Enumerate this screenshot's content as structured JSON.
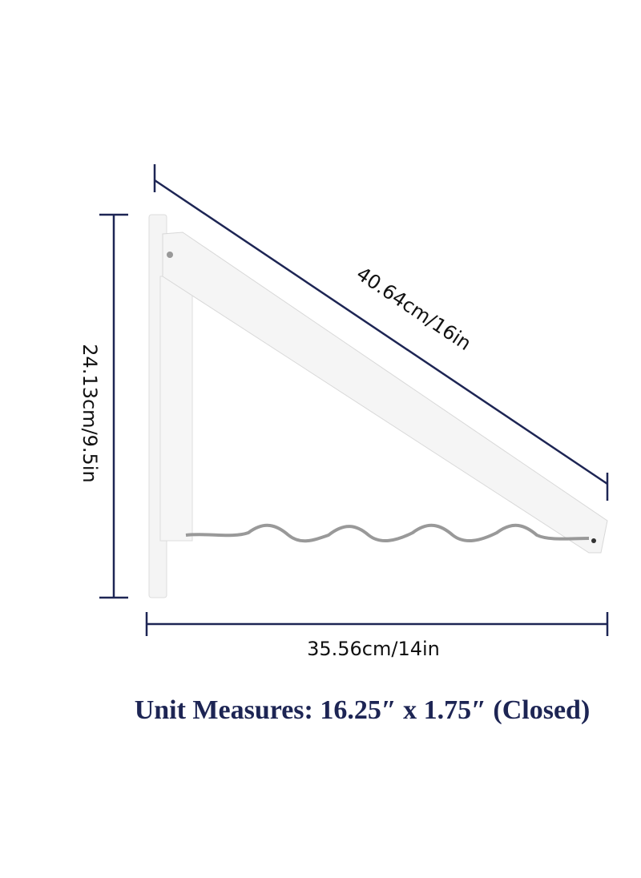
{
  "dimensions": {
    "diagonal": "40.64cm/16in",
    "height": "24.13cm/9.5in",
    "width": "35.56cm/14in"
  },
  "caption": "Unit Measures: 16.25″ x 1.75″ (Closed)"
}
